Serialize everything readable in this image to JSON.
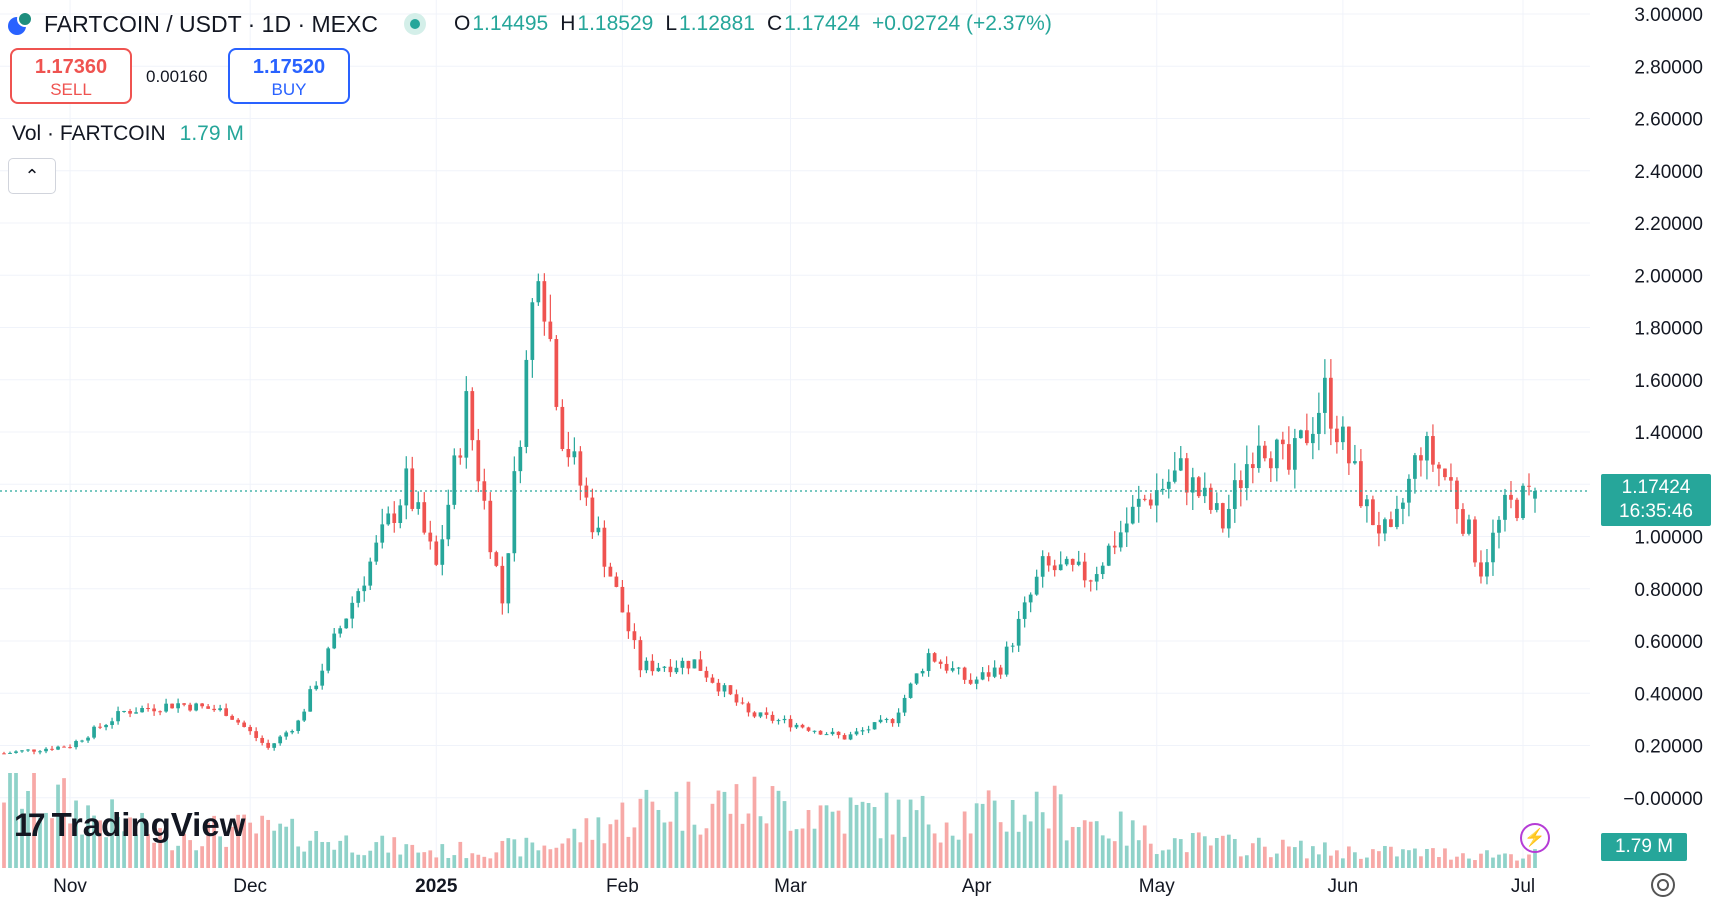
{
  "header": {
    "symbol": "FARTCOIN / USDT · 1D · MEXC",
    "ohlc": [
      {
        "k": "O",
        "v": "1.14495"
      },
      {
        "k": "H",
        "v": "1.18529"
      },
      {
        "k": "L",
        "v": "1.12881"
      },
      {
        "k": "C",
        "v": "1.17424"
      }
    ],
    "change": "+0.02724 (+2.37%)"
  },
  "trade": {
    "sell_price": "1.17360",
    "sell_label": "SELL",
    "spread": "0.00160",
    "buy_price": "1.17520",
    "buy_label": "BUY"
  },
  "volume_legend": {
    "label": "Vol · FARTCOIN",
    "value": "1.79 M"
  },
  "collapse_glyph": "⌃",
  "brand": {
    "mark": "17",
    "name": "TradingView"
  },
  "last_price": {
    "price": "1.17424",
    "countdown": "16:35:46"
  },
  "volume_tag": "1.79 M",
  "bolt_glyph": "⚡",
  "colors": {
    "up": "#26a69a",
    "down": "#ef5350",
    "grid": "#f0f3fa",
    "up_vol": "#8fd2c9",
    "down_vol": "#f7a9a7"
  },
  "chart_data": {
    "type": "candlestick",
    "title": "FARTCOIN / USDT · 1D · MEXC",
    "y_ticks": [
      "3.00000",
      "2.80000",
      "2.60000",
      "2.40000",
      "2.20000",
      "2.00000",
      "1.80000",
      "1.60000",
      "1.40000",
      "1.20000",
      "1.00000",
      "0.80000",
      "0.60000",
      "0.40000",
      "0.20000",
      "−0.00000"
    ],
    "y_tick_values": [
      3.0,
      2.8,
      2.6,
      2.4,
      2.2,
      2.0,
      1.8,
      1.6,
      1.4,
      1.2,
      1.0,
      0.8,
      0.6,
      0.4,
      0.2,
      0.0
    ],
    "ylim": [
      -0.2,
      3.0
    ],
    "x_ticks": [
      {
        "label": "Nov",
        "date": "2024-11-01"
      },
      {
        "label": "Dec",
        "date": "2024-12-01"
      },
      {
        "label": "2025",
        "date": "2025-01-01",
        "bold": true
      },
      {
        "label": "Feb",
        "date": "2025-02-01"
      },
      {
        "label": "Mar",
        "date": "2025-03-01"
      },
      {
        "label": "Apr",
        "date": "2025-04-01"
      },
      {
        "label": "May",
        "date": "2025-05-01"
      },
      {
        "label": "Jun",
        "date": "2025-06-01"
      },
      {
        "label": "Jul",
        "date": "2025-07-01"
      }
    ],
    "last_price": 1.17424,
    "close_path": [
      [
        "2024-10-21",
        0.17
      ],
      [
        "2024-11-01",
        0.2
      ],
      [
        "2024-11-10",
        0.33
      ],
      [
        "2024-11-19",
        0.36
      ],
      [
        "2024-11-27",
        0.33
      ],
      [
        "2024-12-04",
        0.19
      ],
      [
        "2024-12-09",
        0.29
      ],
      [
        "2024-12-14",
        0.55
      ],
      [
        "2024-12-20",
        0.85
      ],
      [
        "2024-12-27",
        1.2
      ],
      [
        "2025-01-01",
        0.88
      ],
      [
        "2025-01-06",
        1.5
      ],
      [
        "2025-01-12",
        0.75
      ],
      [
        "2025-01-18",
        2.1
      ],
      [
        "2025-01-22",
        1.4
      ],
      [
        "2025-01-28",
        1.0
      ],
      [
        "2025-02-04",
        0.5
      ],
      [
        "2025-02-13",
        0.52
      ],
      [
        "2025-02-22",
        0.32
      ],
      [
        "2025-03-02",
        0.28
      ],
      [
        "2025-03-10",
        0.23
      ],
      [
        "2025-03-18",
        0.3
      ],
      [
        "2025-03-24",
        0.55
      ],
      [
        "2025-03-31",
        0.44
      ],
      [
        "2025-04-05",
        0.5
      ],
      [
        "2025-04-12",
        0.88
      ],
      [
        "2025-04-20",
        0.85
      ],
      [
        "2025-04-28",
        1.12
      ],
      [
        "2025-05-05",
        1.25
      ],
      [
        "2025-05-12",
        1.05
      ],
      [
        "2025-05-18",
        1.4
      ],
      [
        "2025-05-23",
        1.25
      ],
      [
        "2025-05-29",
        1.55
      ],
      [
        "2025-06-05",
        1.1
      ],
      [
        "2025-06-09",
        0.98
      ],
      [
        "2025-06-14",
        1.35
      ],
      [
        "2025-06-19",
        1.2
      ],
      [
        "2025-06-24",
        0.88
      ],
      [
        "2025-06-28",
        1.1
      ],
      [
        "2025-07-03",
        1.17
      ]
    ],
    "volume_path": [
      [
        "2024-10-21",
        0.8
      ],
      [
        "2024-11-01",
        0.55
      ],
      [
        "2024-11-15",
        0.3
      ],
      [
        "2024-12-01",
        0.35
      ],
      [
        "2024-12-15",
        0.25
      ],
      [
        "2025-01-01",
        0.15
      ],
      [
        "2025-01-20",
        0.2
      ],
      [
        "2025-02-05",
        0.55
      ],
      [
        "2025-02-20",
        0.6
      ],
      [
        "2025-03-10",
        0.5
      ],
      [
        "2025-03-30",
        0.45
      ],
      [
        "2025-04-12",
        0.55
      ],
      [
        "2025-05-01",
        0.25
      ],
      [
        "2025-06-01",
        0.15
      ],
      [
        "2025-07-03",
        0.12
      ]
    ],
    "volume_scale": "relative 0–1",
    "grid": true
  }
}
